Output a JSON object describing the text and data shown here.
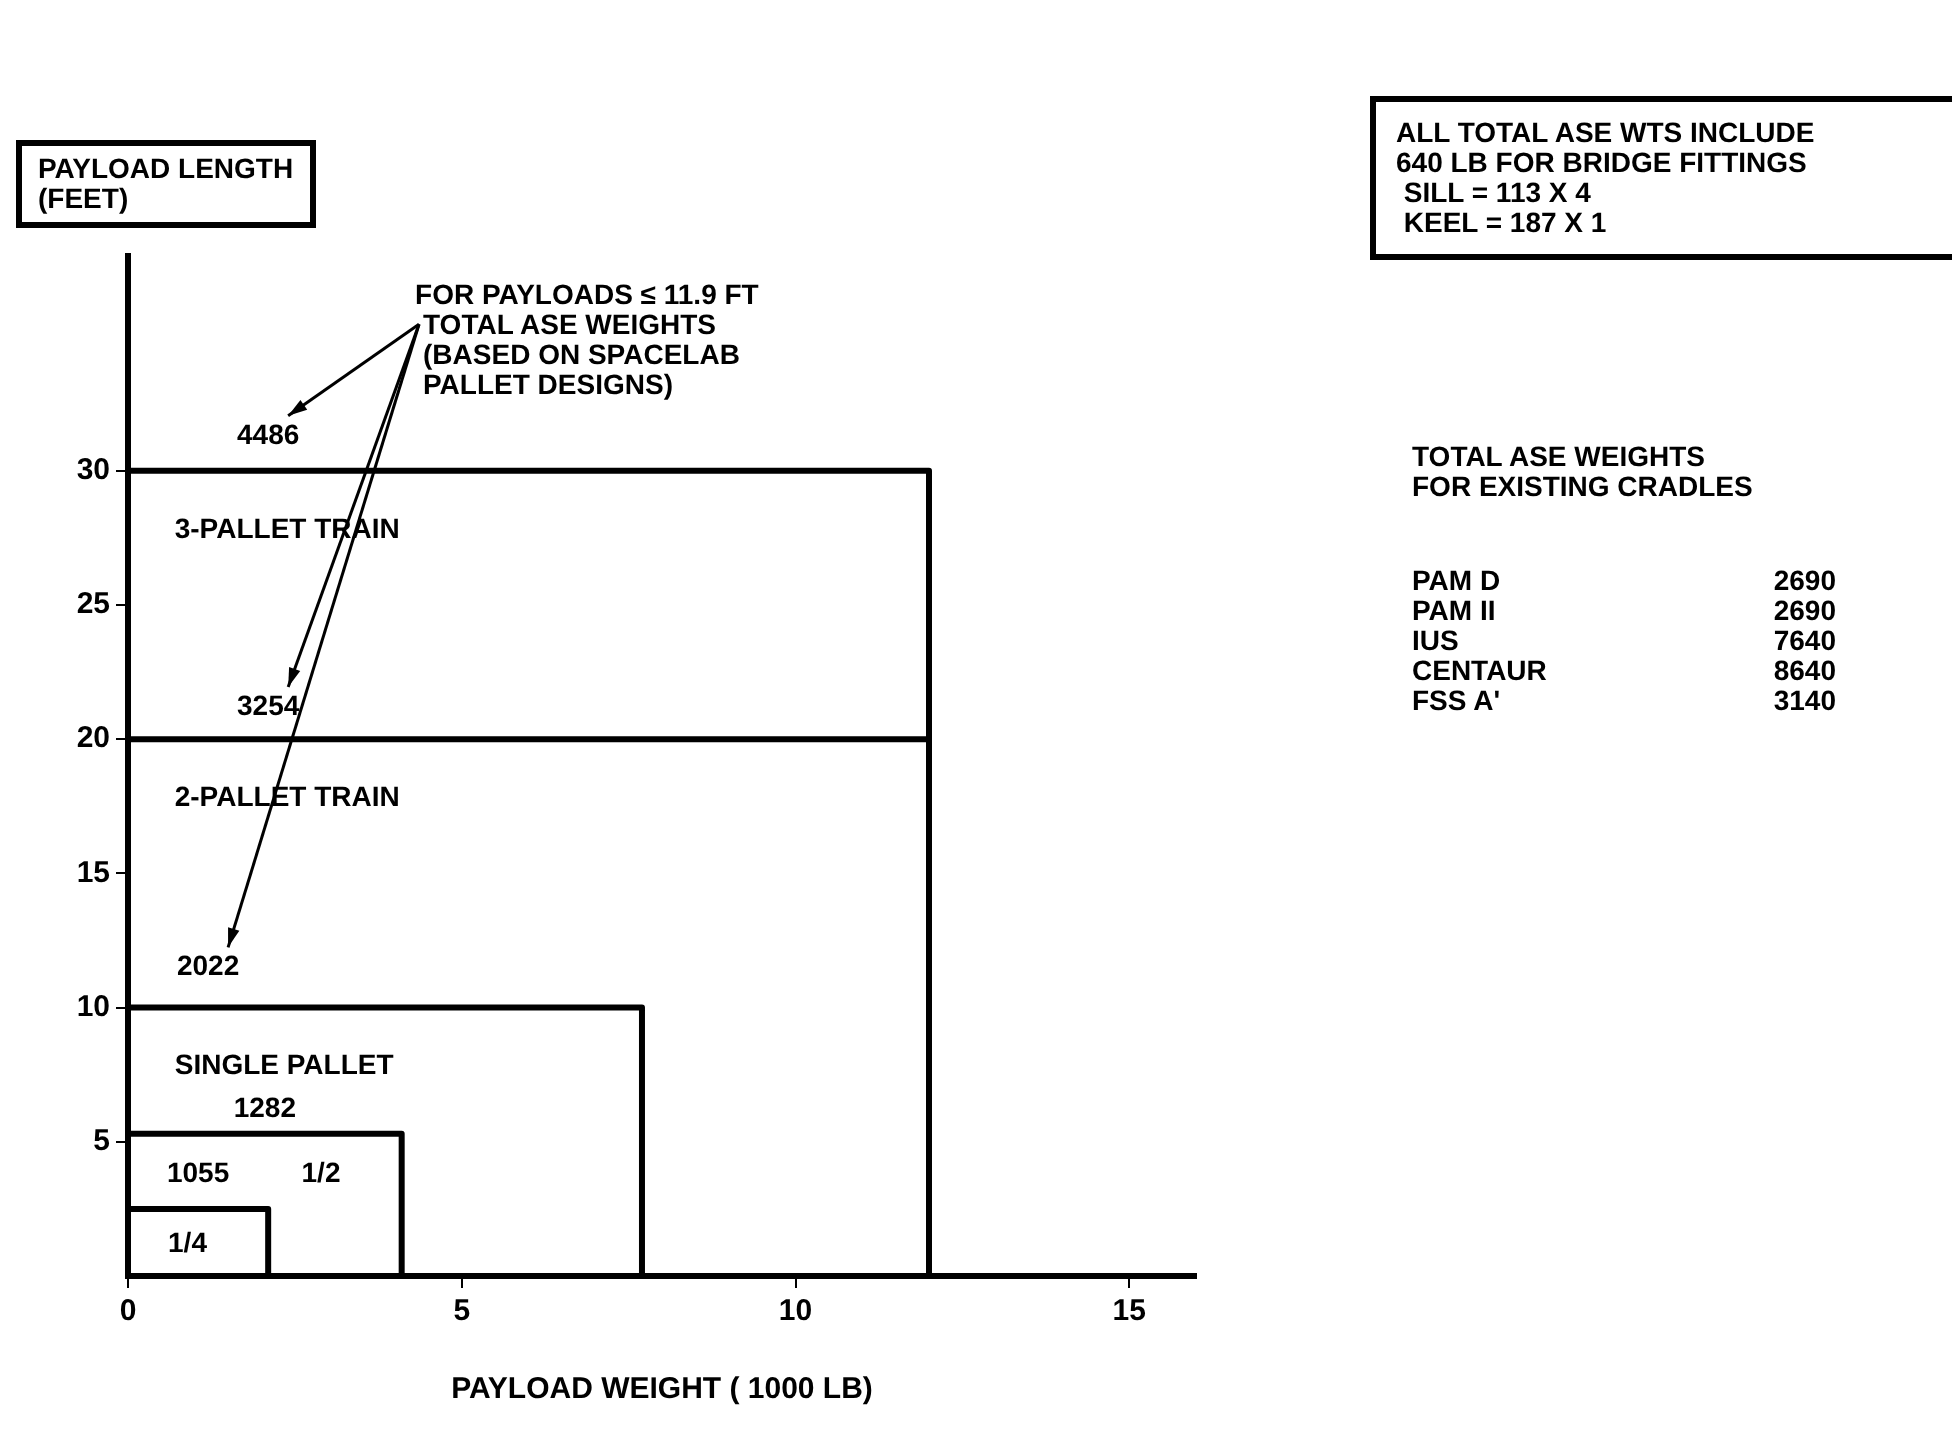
{
  "chart_data": {
    "type": "line",
    "xlabel": "PAYLOAD WEIGHT ( 1000 LB)",
    "ylabel": "PAYLOAD LENGTH\n(FEET)",
    "xlim": [
      0,
      16
    ],
    "ylim": [
      0,
      38
    ],
    "xticks": [
      0,
      5,
      10,
      15
    ],
    "yticks": [
      5,
      10,
      15,
      20,
      25,
      30
    ],
    "grid": false,
    "legend": false,
    "marker": "none",
    "line_style": "solid",
    "series": [
      {
        "name": "3-PALLET TRAIN",
        "color": "#000000",
        "x": [
          0,
          12,
          12
        ],
        "values": [
          30,
          30,
          20
        ]
      },
      {
        "name": "2-PALLET TRAIN",
        "color": "#000000",
        "x": [
          0,
          12,
          12
        ],
        "values": [
          20,
          20,
          0
        ]
      },
      {
        "name": "SINGLE PALLET",
        "color": "#000000",
        "x": [
          0,
          7.7,
          7.7
        ],
        "values": [
          10,
          10,
          0
        ]
      },
      {
        "name": "1/2",
        "color": "#000000",
        "x": [
          0,
          4.1,
          4.1
        ],
        "values": [
          5.3,
          5.3,
          0
        ]
      },
      {
        "name": "1/4",
        "color": "#000000",
        "x": [
          0,
          2.1,
          2.1
        ],
        "values": [
          2.5,
          2.5,
          0
        ]
      }
    ],
    "annotations": [
      "4486",
      "3254",
      "2022",
      "1282",
      "1055",
      "FOR PAYLOADS ≤ 11.9 FT\nTOTAL ASE WEIGHTS\n(BASED ON SPACELAB\nPALLET DESIGNS)",
      "ALL TOTAL ASE WTS INCLUDE\n640 LB FOR BRIDGE FITTINGS\n SILL = 113 X 4\n KEEL = 187 X 1",
      "TOTAL ASE WEIGHTS\nFOR EXISTING CRADLES",
      "PAM D 2690",
      "PAM II 2690",
      "IUS 7640",
      "CENTAUR 8640",
      "FSS A' 3140"
    ]
  }
}
